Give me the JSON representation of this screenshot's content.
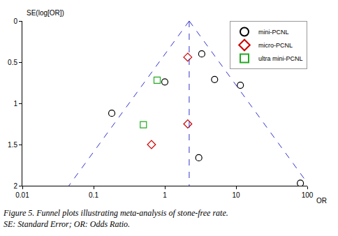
{
  "chart_data": {
    "type": "scatter",
    "caption": [
      "Figure 5. Funnel plots illustrating meta-analysis of stone-free rate.",
      "SE: Standard Error; OR: Odds Ratio."
    ],
    "x_label": "OR",
    "y_label": "SE(log[OR])",
    "log": "x",
    "grid": false,
    "legend": "top right",
    "xlim": [
      0.01,
      100
    ],
    "xticks": [
      0.01,
      0.1,
      1,
      10,
      100
    ],
    "ylim": [
      2,
      0
    ],
    "yticks": [
      0,
      0.5,
      1,
      1.5,
      2
    ],
    "series": [
      {
        "name": "mini-PCNL",
        "type": "scatter",
        "marker": "circle-open",
        "color": "#000000",
        "x": [
          0.18,
          1.0,
          3.3,
          5.0,
          11.5,
          3.0,
          80
        ],
        "values": [
          1.12,
          0.74,
          0.4,
          0.71,
          0.78,
          1.66,
          1.97
        ]
      },
      {
        "name": "micro-PCNL",
        "type": "scatter",
        "marker": "diamond-open",
        "color": "#cc0000",
        "x": [
          2.1,
          2.1,
          0.65
        ],
        "values": [
          0.44,
          1.25,
          1.5
        ]
      },
      {
        "name": "ultra mini-PCNL",
        "type": "scatter",
        "marker": "square-open",
        "color": "#22aa22",
        "x": [
          0.78,
          0.5
        ],
        "values": [
          0.72,
          1.26
        ]
      },
      {
        "type": "line",
        "line_style": "dash",
        "color": "#3333cc",
        "x": [
          2.2,
          2.2
        ],
        "values": [
          0,
          2
        ]
      },
      {
        "type": "line",
        "line_style": "dash",
        "color": "#3333cc",
        "x": [
          2.2,
          0.045
        ],
        "values": [
          0,
          2
        ]
      },
      {
        "type": "line",
        "line_style": "dash",
        "color": "#3333cc",
        "x": [
          2.2,
          107
        ],
        "values": [
          0,
          2
        ]
      }
    ]
  }
}
